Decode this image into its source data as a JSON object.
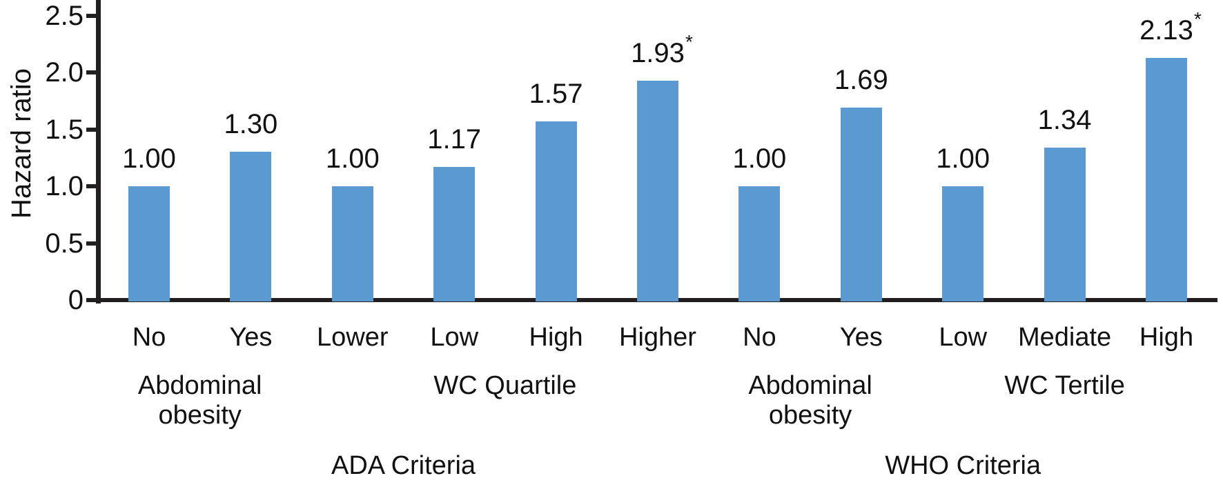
{
  "chart_data": {
    "type": "bar",
    "title": "",
    "ylabel": "Hazard ratio",
    "xlabel": "",
    "ylim": [
      0,
      2.64
    ],
    "grid": false,
    "legend": null,
    "bar_color": "#5B9AD1",
    "axis_color": "#231F20",
    "text_color": "#111111",
    "significance_marker": "*",
    "yticks": [
      {
        "value": 0.0,
        "label": "0"
      },
      {
        "value": 0.5,
        "label": "0.5"
      },
      {
        "value": 1.0,
        "label": "1.0"
      },
      {
        "value": 1.5,
        "label": "1.5"
      },
      {
        "value": 2.0,
        "label": "2.0"
      },
      {
        "value": 2.5,
        "label": "2.5"
      }
    ],
    "bars": [
      {
        "category": "No",
        "value": 1.0,
        "label": "1.00",
        "significant": false
      },
      {
        "category": "Yes",
        "value": 1.3,
        "label": "1.30",
        "significant": false
      },
      {
        "category": "Lower",
        "value": 1.0,
        "label": "1.00",
        "significant": false
      },
      {
        "category": "Low",
        "value": 1.17,
        "label": "1.17",
        "significant": false
      },
      {
        "category": "High",
        "value": 1.57,
        "label": "1.57",
        "significant": false
      },
      {
        "category": "Higher",
        "value": 1.93,
        "label": "1.93",
        "significant": true
      },
      {
        "category": "No",
        "value": 1.0,
        "label": "1.00",
        "significant": false
      },
      {
        "category": "Yes",
        "value": 1.69,
        "label": "1.69",
        "significant": false
      },
      {
        "category": "Low",
        "value": 1.0,
        "label": "1.00",
        "significant": false
      },
      {
        "category": "Mediate",
        "value": 1.34,
        "label": "1.34",
        "significant": false
      },
      {
        "category": "High",
        "value": 2.13,
        "label": "2.13",
        "significant": true
      }
    ],
    "groups": [
      {
        "lines": [
          "Abdominal",
          "obesity"
        ],
        "from": 0,
        "to": 1
      },
      {
        "lines": [
          "WC Quartile"
        ],
        "from": 2,
        "to": 5
      },
      {
        "lines": [
          "Abdominal",
          "obesity"
        ],
        "from": 6,
        "to": 7
      },
      {
        "lines": [
          "WC Tertile"
        ],
        "from": 8,
        "to": 10
      }
    ],
    "criteria": [
      {
        "label": "ADA Criteria",
        "from": 0,
        "to": 5
      },
      {
        "label": "WHO Criteria",
        "from": 6,
        "to": 10
      }
    ]
  }
}
